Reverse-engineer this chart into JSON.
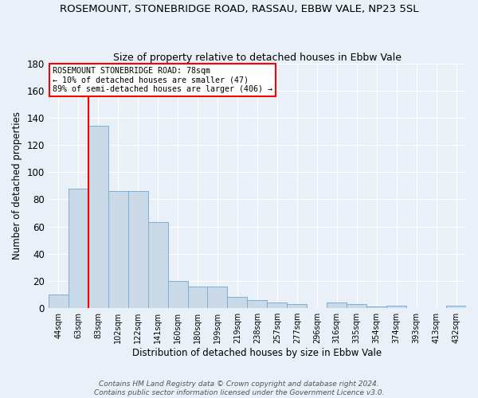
{
  "title": "ROSEMOUNT, STONEBRIDGE ROAD, RASSAU, EBBW VALE, NP23 5SL",
  "subtitle": "Size of property relative to detached houses in Ebbw Vale",
  "xlabel": "Distribution of detached houses by size in Ebbw Vale",
  "ylabel": "Number of detached properties",
  "categories": [
    "44sqm",
    "63sqm",
    "83sqm",
    "102sqm",
    "122sqm",
    "141sqm",
    "160sqm",
    "180sqm",
    "199sqm",
    "219sqm",
    "238sqm",
    "257sqm",
    "277sqm",
    "296sqm",
    "316sqm",
    "335sqm",
    "354sqm",
    "374sqm",
    "393sqm",
    "413sqm",
    "432sqm"
  ],
  "values": [
    10,
    88,
    134,
    86,
    86,
    63,
    20,
    16,
    16,
    8,
    6,
    4,
    3,
    0,
    4,
    3,
    1,
    2,
    0,
    0,
    2
  ],
  "bar_color": "#c9d9e8",
  "bar_edge_color": "#7bafd4",
  "red_line_x": 1.5,
  "annotation_line1": "ROSEMOUNT STONEBRIDGE ROAD: 78sqm",
  "annotation_line2": "← 10% of detached houses are smaller (47)",
  "annotation_line3": "89% of semi-detached houses are larger (406) →",
  "annotation_box_color": "white",
  "annotation_box_edge_color": "red",
  "ylim": [
    0,
    180
  ],
  "yticks": [
    0,
    20,
    40,
    60,
    80,
    100,
    120,
    140,
    160,
    180
  ],
  "footer_line1": "Contains HM Land Registry data © Crown copyright and database right 2024.",
  "footer_line2": "Contains public sector information licensed under the Government Licence v3.0.",
  "bg_color": "#eaf0f8",
  "plot_bg_color": "#eaf0f8"
}
